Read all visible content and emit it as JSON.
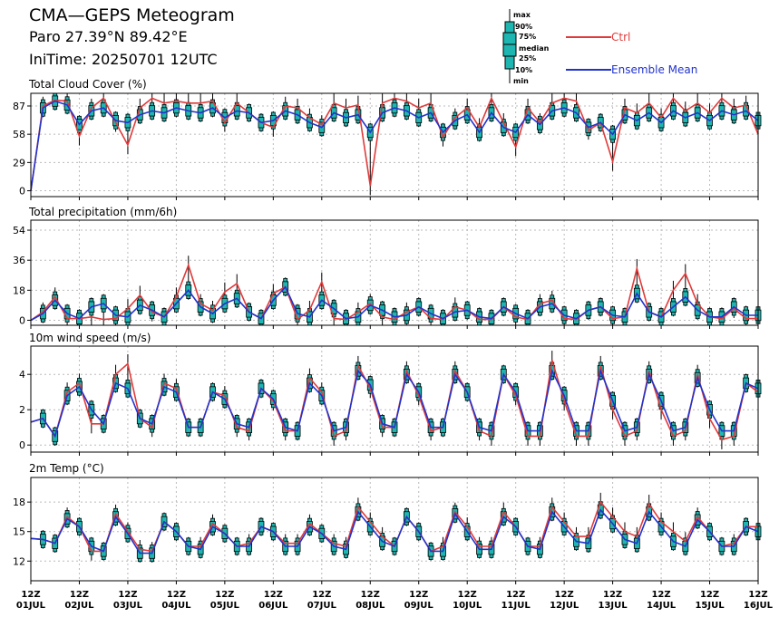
{
  "header": {
    "title": "CMA—GEPS Meteogram",
    "location": "Paro 27.39°N 89.42°E",
    "init_time": "IniTime: 20250701 12UTC"
  },
  "legend": {
    "box_keys": [
      "max",
      "90%",
      "75%",
      "median",
      "25%",
      "10%",
      "min"
    ],
    "ctrl_label": "Ctrl",
    "mean_label": "Ensemble Mean",
    "ctrl_color": "#e03a3a",
    "mean_color": "#2233cc",
    "box_fill": "#1fb5b0"
  },
  "colors": {
    "ctrl": "#e03a3a",
    "mean": "#2233cc",
    "box_fill": "#1fb5b0",
    "grid": "#bbbbbb"
  },
  "chart_data": [
    {
      "type": "line",
      "title": "Total Cloud Cover (%)",
      "ylim": [
        -6,
        100
      ],
      "yticks": [
        0,
        29,
        58,
        87
      ],
      "x_hours": [
        0,
        6,
        12,
        18,
        24,
        30,
        36,
        42,
        48,
        54,
        60,
        66,
        72,
        78,
        84,
        90,
        96,
        102,
        108,
        114,
        120,
        126,
        132,
        138,
        144,
        150,
        156,
        162,
        168,
        174,
        180,
        186,
        192,
        198,
        204,
        210,
        216,
        222,
        228,
        234,
        240,
        246,
        252,
        258,
        264,
        270,
        276,
        282,
        288,
        294,
        300,
        306,
        312,
        318,
        324,
        330,
        336,
        342,
        348,
        354,
        360
      ],
      "series": [
        {
          "name": "Ctrl",
          "values": [
            0,
            87,
            93,
            92,
            56,
            85,
            95,
            70,
            47,
            85,
            95,
            90,
            92,
            90,
            90,
            92,
            70,
            90,
            80,
            70,
            65,
            87,
            85,
            75,
            68,
            90,
            85,
            88,
            5,
            90,
            95,
            92,
            85,
            90,
            55,
            75,
            85,
            65,
            95,
            70,
            45,
            85,
            70,
            90,
            95,
            92,
            62,
            70,
            30,
            85,
            80,
            90,
            75,
            95,
            82,
            90,
            80,
            95,
            85,
            88,
            58
          ]
        },
        {
          "name": "Ensemble Mean",
          "values": [
            0,
            85,
            92,
            88,
            68,
            82,
            85,
            72,
            70,
            78,
            82,
            80,
            85,
            82,
            80,
            85,
            75,
            82,
            80,
            70,
            72,
            82,
            78,
            70,
            65,
            80,
            75,
            78,
            60,
            80,
            85,
            82,
            75,
            80,
            60,
            72,
            78,
            60,
            80,
            65,
            60,
            78,
            68,
            82,
            85,
            80,
            65,
            70,
            58,
            78,
            72,
            80,
            70,
            82,
            75,
            80,
            72,
            82,
            78,
            82,
            72
          ]
        }
      ]
    },
    {
      "type": "line",
      "title": "Total precipitation (mm/6h)",
      "ylim": [
        -3,
        60
      ],
      "yticks": [
        0,
        18,
        36,
        54
      ],
      "x_hours": [
        0,
        6,
        12,
        18,
        24,
        30,
        36,
        42,
        48,
        54,
        60,
        66,
        72,
        78,
        84,
        90,
        96,
        102,
        108,
        114,
        120,
        126,
        132,
        138,
        144,
        150,
        156,
        162,
        168,
        174,
        180,
        186,
        192,
        198,
        204,
        210,
        216,
        222,
        228,
        234,
        240,
        246,
        252,
        258,
        264,
        270,
        276,
        282,
        288,
        294,
        300,
        306,
        312,
        318,
        324,
        330,
        336,
        342,
        348,
        354,
        360
      ],
      "series": [
        {
          "name": "Ctrl",
          "values": [
            0,
            5,
            14,
            1,
            1,
            2,
            0.5,
            1,
            7,
            15,
            5,
            2,
            14,
            33,
            10,
            6,
            17,
            22,
            5,
            1,
            16,
            20,
            0.5,
            6,
            23,
            1,
            0.5,
            5,
            10,
            2,
            0.5,
            5,
            8,
            1,
            0.5,
            8,
            6,
            0.5,
            0.5,
            8,
            2,
            0.5,
            10,
            12,
            1,
            0.5,
            6,
            8,
            1,
            2,
            31,
            5,
            2,
            18,
            28,
            10,
            2,
            1,
            7,
            1,
            1
          ]
        },
        {
          "name": "Ensemble Mean",
          "values": [
            0,
            4,
            12,
            4,
            1,
            8,
            10,
            3,
            2,
            9,
            6,
            2,
            10,
            18,
            8,
            4,
            10,
            13,
            5,
            1,
            12,
            20,
            4,
            2,
            12,
            7,
            1,
            2,
            9,
            6,
            2,
            3,
            8,
            4,
            1,
            5,
            6,
            2,
            1,
            8,
            4,
            1,
            8,
            10,
            3,
            1,
            6,
            8,
            3,
            2,
            16,
            5,
            2,
            8,
            14,
            6,
            2,
            2,
            8,
            3,
            3
          ]
        }
      ]
    },
    {
      "type": "line",
      "title": "10m wind speed (m/s)",
      "ylim": [
        -0.4,
        5.6
      ],
      "yticks": [
        0,
        2,
        4
      ],
      "x_hours": [
        0,
        6,
        12,
        18,
        24,
        30,
        36,
        42,
        48,
        54,
        60,
        66,
        72,
        78,
        84,
        90,
        96,
        102,
        108,
        114,
        120,
        126,
        132,
        138,
        144,
        150,
        156,
        162,
        168,
        174,
        180,
        186,
        192,
        198,
        204,
        210,
        216,
        222,
        228,
        234,
        240,
        246,
        252,
        258,
        264,
        270,
        276,
        282,
        288,
        294,
        300,
        306,
        312,
        318,
        324,
        330,
        336,
        342,
        348,
        354,
        360
      ],
      "series": [
        {
          "name": "Ctrl",
          "values": [
            1.3,
            1.5,
            0.5,
            3.0,
            3.5,
            1.2,
            1.2,
            4.0,
            4.6,
            1.5,
            1.0,
            3.5,
            3.2,
            1.0,
            1.0,
            3.0,
            2.8,
            1.0,
            0.8,
            3.2,
            2.5,
            0.8,
            0.8,
            3.8,
            3.0,
            0.5,
            0.8,
            4.5,
            3.2,
            1.0,
            1.0,
            4.2,
            2.8,
            0.8,
            1.0,
            4.2,
            3.0,
            0.8,
            0.5,
            4.0,
            2.8,
            0.5,
            0.5,
            4.8,
            2.5,
            0.5,
            0.5,
            4.5,
            2.0,
            0.5,
            0.8,
            4.2,
            2.0,
            0.5,
            0.8,
            4.0,
            1.5,
            0.3,
            0.5,
            3.5,
            3.0
          ]
        },
        {
          "name": "Ensemble Mean",
          "values": [
            1.3,
            1.5,
            0.5,
            2.8,
            3.3,
            2.0,
            1.2,
            3.5,
            3.2,
            1.5,
            1.2,
            3.3,
            3.0,
            1.0,
            1.0,
            3.0,
            2.6,
            1.2,
            1.0,
            3.2,
            2.6,
            1.0,
            0.8,
            3.5,
            2.8,
            0.8,
            1.0,
            4.2,
            3.4,
            1.2,
            1.0,
            4.0,
            3.0,
            1.0,
            1.0,
            4.0,
            3.0,
            1.0,
            0.8,
            4.0,
            3.0,
            0.8,
            0.8,
            4.2,
            2.8,
            0.8,
            0.8,
            4.2,
            2.5,
            0.8,
            1.0,
            4.0,
            2.5,
            0.8,
            1.0,
            3.8,
            2.0,
            0.8,
            0.8,
            3.5,
            3.2
          ]
        }
      ]
    },
    {
      "type": "line",
      "title": "2m Temp (°C)",
      "ylim": [
        10,
        20.5
      ],
      "yticks": [
        12,
        15,
        18
      ],
      "x_hours": [
        0,
        6,
        12,
        18,
        24,
        30,
        36,
        42,
        48,
        54,
        60,
        66,
        72,
        78,
        84,
        90,
        96,
        102,
        108,
        114,
        120,
        126,
        132,
        138,
        144,
        150,
        156,
        162,
        168,
        174,
        180,
        186,
        192,
        198,
        204,
        210,
        216,
        222,
        228,
        234,
        240,
        246,
        252,
        258,
        264,
        270,
        276,
        282,
        288,
        294,
        300,
        306,
        312,
        318,
        324,
        330,
        336,
        342,
        348,
        354,
        360
      ],
      "series": [
        {
          "name": "Ctrl",
          "values": [
            14.3,
            14.2,
            13.8,
            16.5,
            15.5,
            13.0,
            13.0,
            16.8,
            15.0,
            13.2,
            13.0,
            16.0,
            15.0,
            13.5,
            13.5,
            15.8,
            14.8,
            13.5,
            13.8,
            15.5,
            15.0,
            13.8,
            13.8,
            15.8,
            14.8,
            13.8,
            13.5,
            17.5,
            16.0,
            14.5,
            13.5,
            16.5,
            15.0,
            13.0,
            13.5,
            17.0,
            15.5,
            13.5,
            13.5,
            17.0,
            15.5,
            13.5,
            13.5,
            17.5,
            16.0,
            14.5,
            14.5,
            18.0,
            16.5,
            15.0,
            14.5,
            17.8,
            16.0,
            15.0,
            14.0,
            16.5,
            15.0,
            13.5,
            13.8,
            15.5,
            15.5
          ]
        },
        {
          "name": "Ensemble Mean",
          "values": [
            14.3,
            14.2,
            13.8,
            16.3,
            15.5,
            13.5,
            13.0,
            16.5,
            14.8,
            12.8,
            12.8,
            16.0,
            15.0,
            13.5,
            13.2,
            15.5,
            14.8,
            13.5,
            13.5,
            15.5,
            15.0,
            13.5,
            13.5,
            15.5,
            14.8,
            13.5,
            13.2,
            17.0,
            15.5,
            14.0,
            13.5,
            16.5,
            15.0,
            13.0,
            13.0,
            16.8,
            15.0,
            13.2,
            13.2,
            16.5,
            15.5,
            13.5,
            13.2,
            17.0,
            15.5,
            14.0,
            13.8,
            17.2,
            15.8,
            14.2,
            13.8,
            17.0,
            15.5,
            14.0,
            13.5,
            16.2,
            15.0,
            13.5,
            13.5,
            15.5,
            15.0
          ]
        }
      ]
    }
  ],
  "x_axis": {
    "labels": [
      {
        "top": "12Z",
        "bottom": "01JUL"
      },
      {
        "top": "12Z",
        "bottom": "02JUL"
      },
      {
        "top": "12Z",
        "bottom": "03JUL"
      },
      {
        "top": "12Z",
        "bottom": "04JUL"
      },
      {
        "top": "12Z",
        "bottom": "05JUL"
      },
      {
        "top": "12Z",
        "bottom": "06JUL"
      },
      {
        "top": "12Z",
        "bottom": "07JUL"
      },
      {
        "top": "12Z",
        "bottom": "08JUL"
      },
      {
        "top": "12Z",
        "bottom": "09JUL"
      },
      {
        "top": "12Z",
        "bottom": "10JUL"
      },
      {
        "top": "12Z",
        "bottom": "11JUL"
      },
      {
        "top": "12Z",
        "bottom": "12JUL"
      },
      {
        "top": "12Z",
        "bottom": "13JUL"
      },
      {
        "top": "12Z",
        "bottom": "14JUL"
      },
      {
        "top": "12Z",
        "bottom": "15JUL"
      },
      {
        "top": "12Z",
        "bottom": "16JUL"
      }
    ]
  }
}
